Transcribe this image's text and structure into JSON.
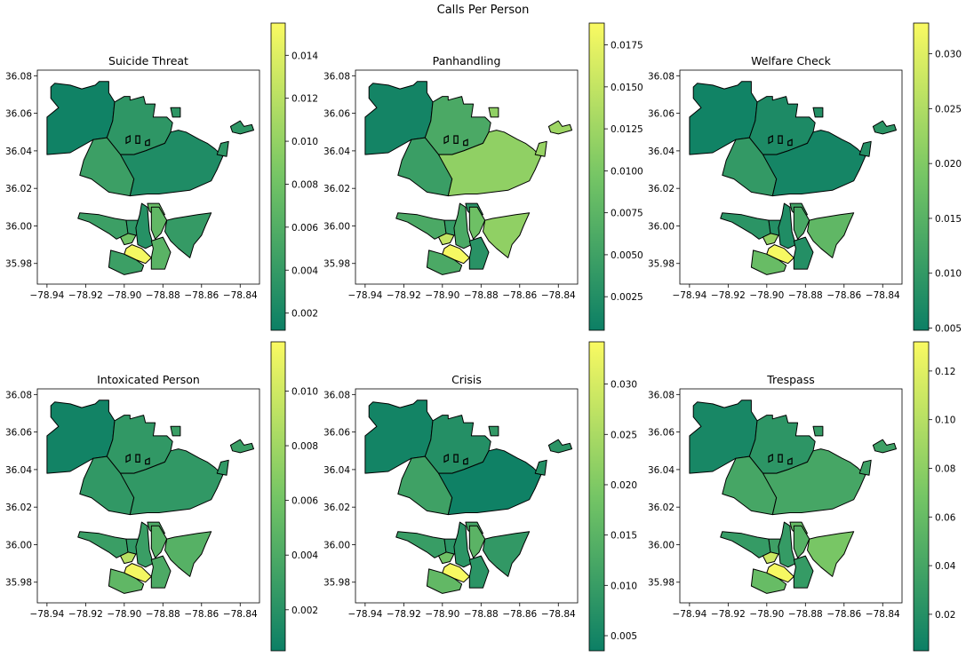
{
  "figure": {
    "title": "Calls Per Person"
  },
  "colormap": {
    "low": "#0c7f65",
    "mid": "#75c565",
    "high": "#fafa62",
    "edge": "#000000"
  },
  "map_axes": {
    "xlim": [
      -78.945,
      -78.83
    ],
    "ylim": [
      35.969,
      36.083
    ],
    "x_ticks": [
      -78.94,
      -78.92,
      -78.9,
      -78.88,
      -78.86,
      -78.84
    ],
    "x_tick_labels": [
      "−78.94",
      "−78.92",
      "−78.90",
      "−78.88",
      "−78.86",
      "−78.84"
    ],
    "y_ticks": [
      35.98,
      36.0,
      36.02,
      36.04,
      36.06,
      36.08
    ],
    "y_tick_labels": [
      "35.98",
      "36.00",
      "36.02",
      "36.04",
      "36.06",
      "36.08"
    ]
  },
  "chart_data": [
    {
      "type": "choropleth",
      "title": "Suicide Threat",
      "colorbar": {
        "range": [
          0.0012,
          0.0155
        ],
        "ticks": [
          0.002,
          0.004,
          0.006,
          0.008,
          0.01,
          0.012,
          0.014
        ],
        "tick_labels": [
          "0.002",
          "0.004",
          "0.006",
          "0.008",
          "0.010",
          "0.012",
          "0.014"
        ]
      },
      "region_values": {
        "west": 0.0015,
        "north": 0.0035,
        "northeast_isle": 0.0035,
        "center_west": 0.0045,
        "east": 0.0025,
        "far_east_a": 0.0035,
        "far_east_b": 0.0035,
        "sw": 0.0045,
        "s_strip": 0.0035,
        "center_south": 0.003,
        "center_east": 0.007,
        "se": 0.004,
        "s_bump": 0.0075,
        "s_mid": 0.008,
        "downtown": 0.0152,
        "s_bottom": 0.0045,
        "s_center": 0.0065
      }
    },
    {
      "type": "choropleth",
      "title": "Panhandling",
      "colorbar": {
        "range": [
          0.0005,
          0.0188
        ],
        "ticks": [
          0.0025,
          0.005,
          0.0075,
          0.01,
          0.0125,
          0.015,
          0.0175
        ],
        "tick_labels": [
          "0.0025",
          "0.0050",
          "0.0075",
          "0.0100",
          "0.0125",
          "0.0150",
          "0.0175"
        ]
      },
      "region_values": {
        "west": 0.0012,
        "north": 0.006,
        "northeast_isle": 0.0115,
        "center_west": 0.0045,
        "east": 0.0115,
        "far_east_a": 0.0125,
        "far_east_b": 0.012,
        "sw": 0.006,
        "s_strip": 0.004,
        "center_south": 0.006,
        "center_east": 0.009,
        "se": 0.0115,
        "s_bump": 0.003,
        "s_mid": 0.015,
        "downtown": 0.0185,
        "s_bottom": 0.006,
        "s_center": 0.003
      }
    },
    {
      "type": "choropleth",
      "title": "Welfare Check",
      "colorbar": {
        "range": [
          0.0048,
          0.0328
        ],
        "ticks": [
          0.005,
          0.01,
          0.015,
          0.02,
          0.025,
          0.03
        ],
        "tick_labels": [
          "0.005",
          "0.010",
          "0.015",
          "0.020",
          "0.025",
          "0.030"
        ]
      },
      "region_values": {
        "west": 0.0055,
        "north": 0.007,
        "northeast_isle": 0.008,
        "center_west": 0.01,
        "east": 0.006,
        "far_east_a": 0.009,
        "far_east_b": 0.008,
        "sw": 0.009,
        "s_strip": 0.008,
        "center_south": 0.0075,
        "center_east": 0.013,
        "se": 0.016,
        "s_bump": 0.012,
        "s_mid": 0.022,
        "downtown": 0.0325,
        "s_bottom": 0.017,
        "s_center": 0.008
      }
    },
    {
      "type": "choropleth",
      "title": "Intoxicated Person",
      "colorbar": {
        "range": [
          0.0005,
          0.0118
        ],
        "ticks": [
          0.002,
          0.004,
          0.006,
          0.008,
          0.01
        ],
        "tick_labels": [
          "0.002",
          "0.004",
          "0.006",
          "0.008",
          "0.010"
        ]
      },
      "region_values": {
        "west": 0.0008,
        "north": 0.0025,
        "northeast_isle": 0.003,
        "center_west": 0.0025,
        "east": 0.0025,
        "far_east_a": 0.003,
        "far_east_b": 0.0025,
        "sw": 0.003,
        "s_strip": 0.0025,
        "center_south": 0.003,
        "center_east": 0.0045,
        "se": 0.0045,
        "s_bump": 0.004,
        "s_mid": 0.009,
        "downtown": 0.0115,
        "s_bottom": 0.005,
        "s_center": 0.004
      }
    },
    {
      "type": "choropleth",
      "title": "Crisis",
      "colorbar": {
        "range": [
          0.0035,
          0.0342
        ],
        "ticks": [
          0.005,
          0.01,
          0.015,
          0.02,
          0.025,
          0.03
        ],
        "tick_labels": [
          "0.005",
          "0.010",
          "0.015",
          "0.020",
          "0.025",
          "0.030"
        ]
      },
      "region_values": {
        "west": 0.0045,
        "north": 0.007,
        "northeast_isle": 0.009,
        "center_west": 0.011,
        "east": 0.004,
        "far_east_a": 0.008,
        "far_east_b": 0.007,
        "sw": 0.01,
        "s_strip": 0.008,
        "center_south": 0.008,
        "center_east": 0.015,
        "se": 0.009,
        "s_bump": 0.012,
        "s_mid": 0.018,
        "downtown": 0.034,
        "s_bottom": 0.016,
        "s_center": 0.008
      }
    },
    {
      "type": "choropleth",
      "title": "Trespass",
      "colorbar": {
        "range": [
          0.005,
          0.132
        ],
        "ticks": [
          0.02,
          0.04,
          0.06,
          0.08,
          0.1,
          0.12
        ],
        "tick_labels": [
          "0.02",
          "0.04",
          "0.06",
          "0.08",
          "0.10",
          "0.12"
        ]
      },
      "region_values": {
        "west": 0.012,
        "north": 0.025,
        "northeast_isle": 0.03,
        "center_west": 0.04,
        "east": 0.04,
        "far_east_a": 0.035,
        "far_east_b": 0.035,
        "sw": 0.03,
        "s_strip": 0.035,
        "center_south": 0.03,
        "center_east": 0.05,
        "se": 0.07,
        "s_bump": 0.06,
        "s_mid": 0.11,
        "downtown": 0.13,
        "s_bottom": 0.06,
        "s_center": 0.03
      }
    }
  ]
}
